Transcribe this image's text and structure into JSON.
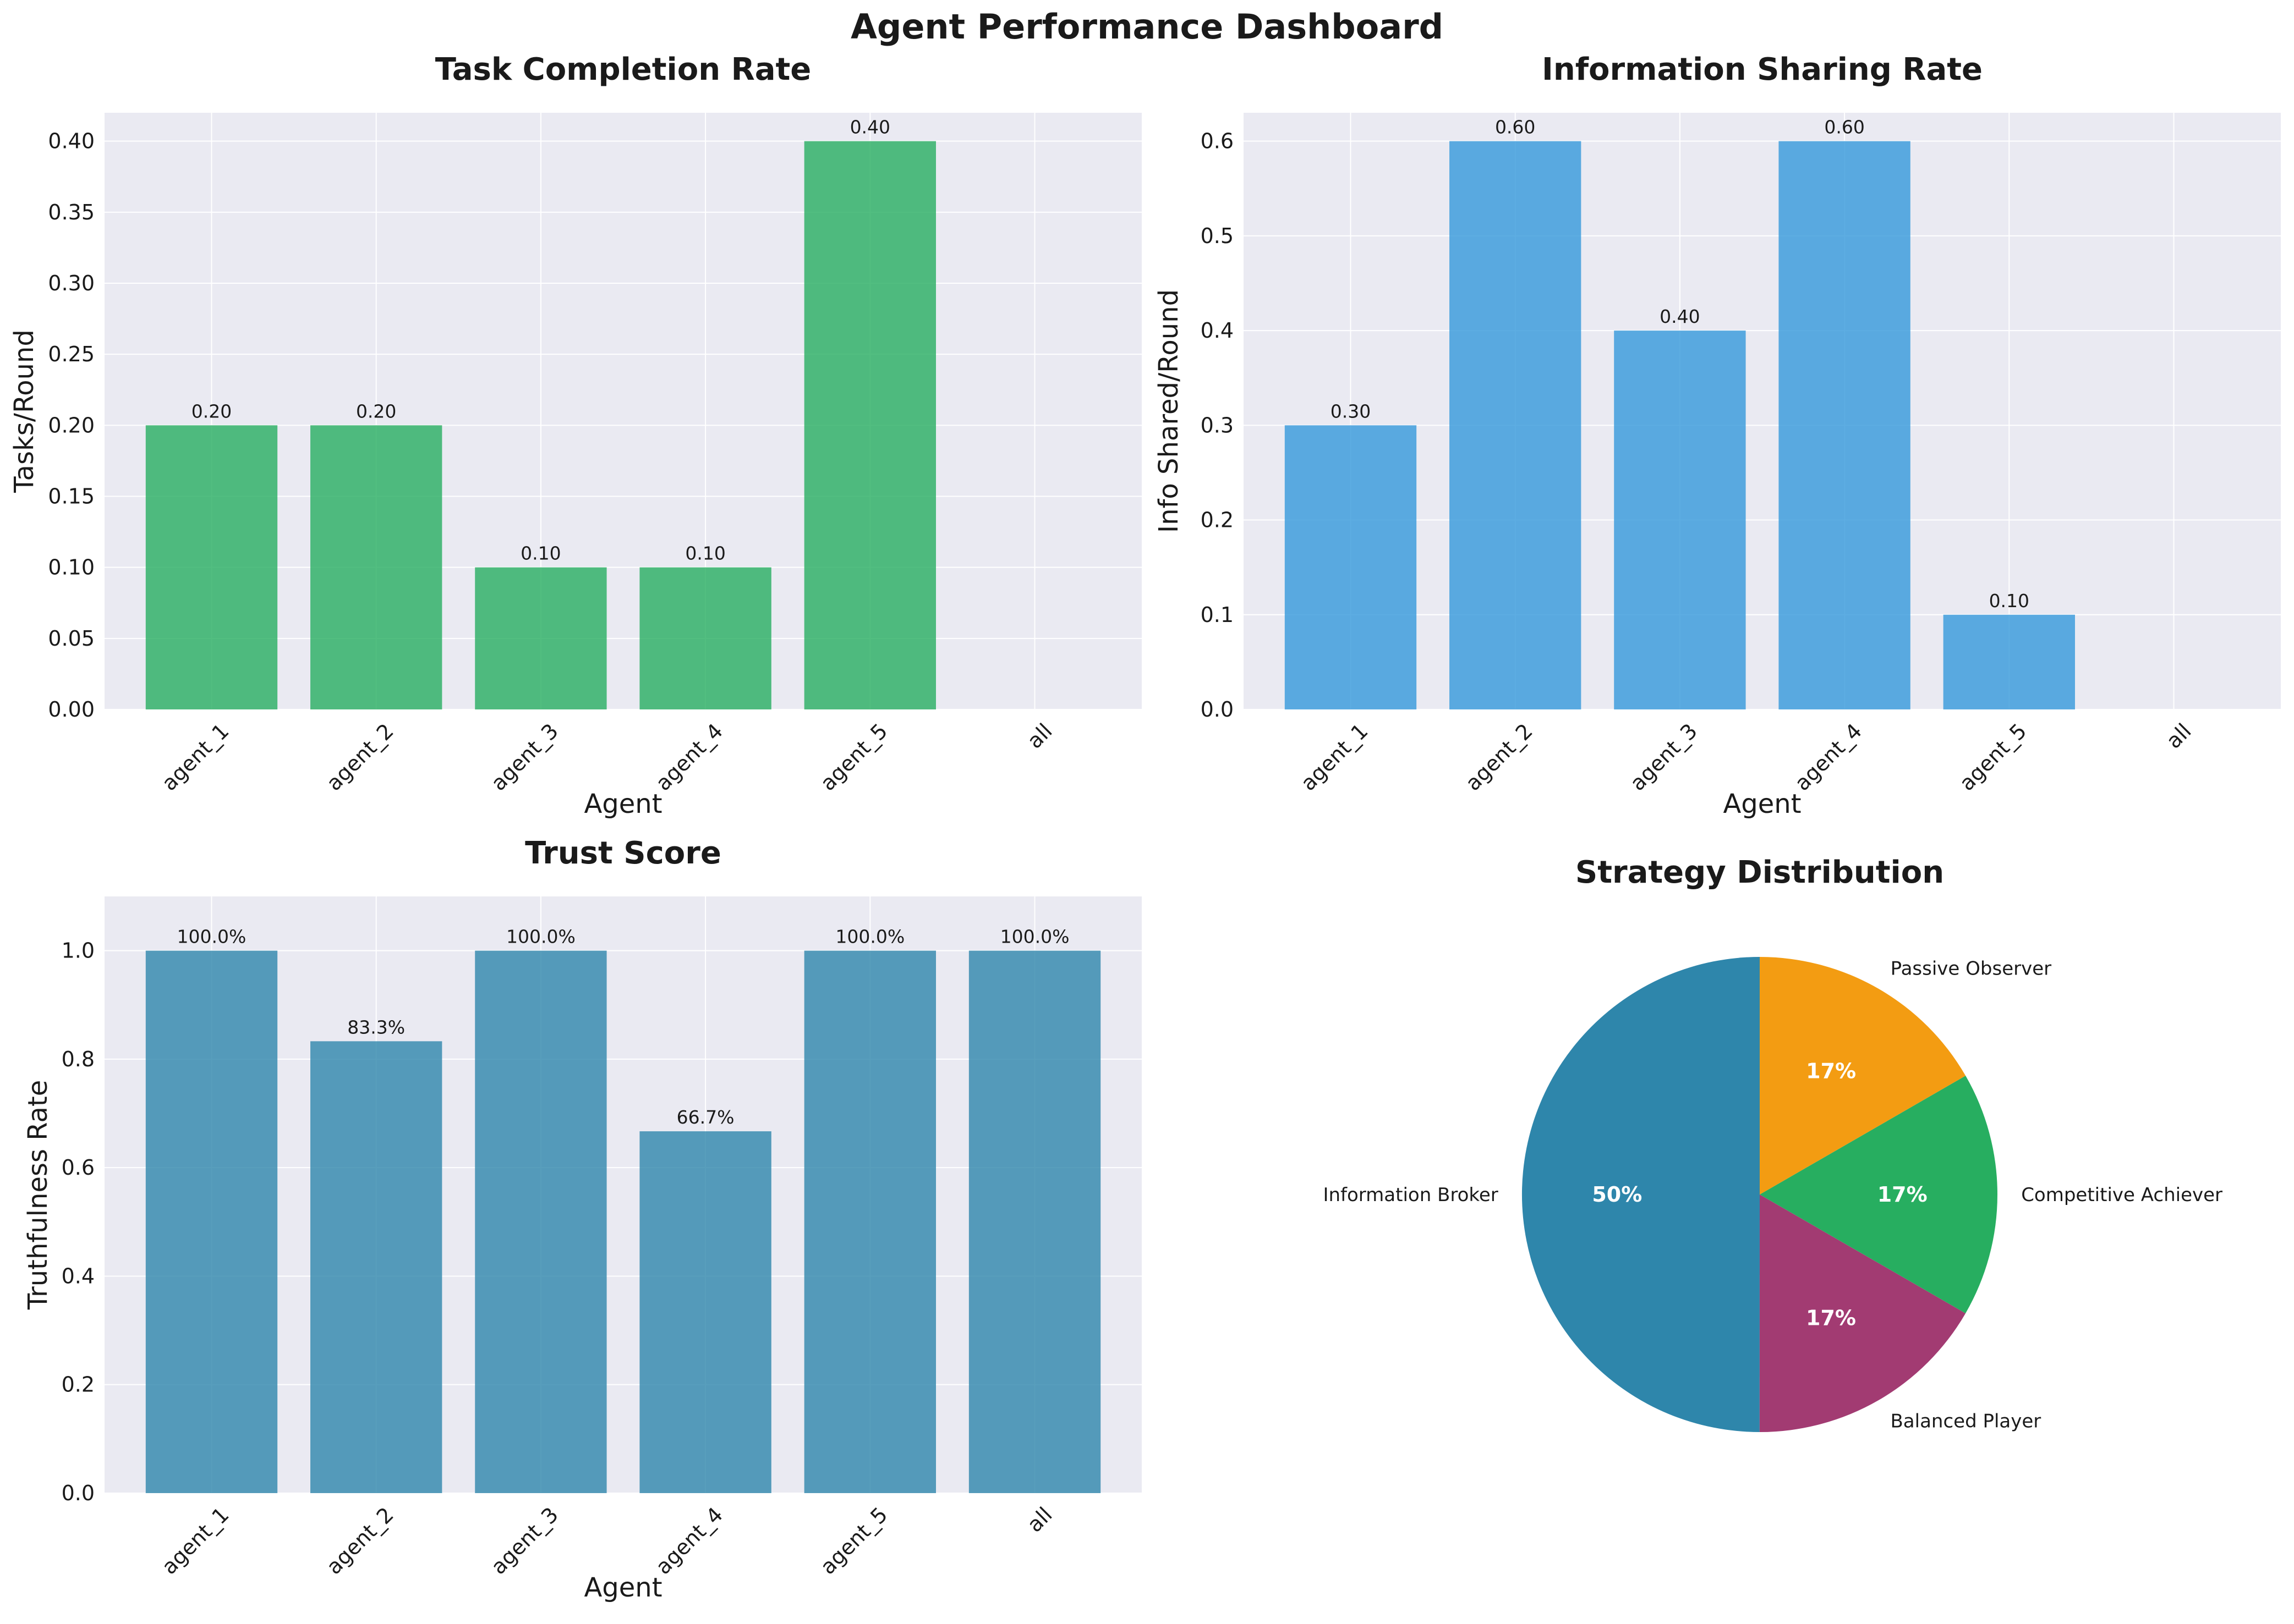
{
  "title": "Agent Performance Dashboard",
  "chart_data": [
    {
      "type": "bar",
      "title": "Task Completion Rate",
      "xlabel": "Agent",
      "ylabel": "Tasks/Round",
      "categories": [
        "agent_1",
        "agent_2",
        "agent_3",
        "agent_4",
        "agent_5",
        "all"
      ],
      "values": [
        0.2,
        0.2,
        0.1,
        0.1,
        0.4,
        null
      ],
      "data_labels": [
        "0.20",
        "0.20",
        "0.10",
        "0.10",
        "0.40",
        ""
      ],
      "ylim": [
        0,
        0.42
      ],
      "yticks": [
        0.0,
        0.05,
        0.1,
        0.15,
        0.2,
        0.25,
        0.3,
        0.35,
        0.4
      ],
      "ytick_labels": [
        "0.00",
        "0.05",
        "0.10",
        "0.15",
        "0.20",
        "0.25",
        "0.30",
        "0.35",
        "0.40"
      ],
      "color": "#27ae60",
      "grid": true
    },
    {
      "type": "bar",
      "title": "Information Sharing Rate",
      "xlabel": "Agent",
      "ylabel": "Info Shared/Round",
      "categories": [
        "agent_1",
        "agent_2",
        "agent_3",
        "agent_4",
        "agent_5",
        "all"
      ],
      "values": [
        0.3,
        0.6,
        0.4,
        0.6,
        0.1,
        null
      ],
      "data_labels": [
        "0.30",
        "0.60",
        "0.40",
        "0.60",
        "0.10",
        ""
      ],
      "ylim": [
        0,
        0.63
      ],
      "yticks": [
        0.0,
        0.1,
        0.2,
        0.3,
        0.4,
        0.5,
        0.6
      ],
      "ytick_labels": [
        "0.0",
        "0.1",
        "0.2",
        "0.3",
        "0.4",
        "0.5",
        "0.6"
      ],
      "color": "#3498db",
      "grid": true
    },
    {
      "type": "bar",
      "title": "Trust Score",
      "xlabel": "Agent",
      "ylabel": "Truthfulness Rate",
      "categories": [
        "agent_1",
        "agent_2",
        "agent_3",
        "agent_4",
        "agent_5",
        "all"
      ],
      "values": [
        1.0,
        0.833,
        1.0,
        0.667,
        1.0,
        1.0
      ],
      "data_labels": [
        "100.0%",
        "83.3%",
        "100.0%",
        "66.7%",
        "100.0%",
        "100.0%"
      ],
      "ylim": [
        0,
        1.1
      ],
      "yticks": [
        0.0,
        0.2,
        0.4,
        0.6,
        0.8,
        1.0
      ],
      "ytick_labels": [
        "0.0",
        "0.2",
        "0.4",
        "0.6",
        "0.8",
        "1.0"
      ],
      "color": "#2e86ab",
      "grid": true
    },
    {
      "type": "pie",
      "title": "Strategy Distribution",
      "labels": [
        "Information Broker",
        "Balanced Player",
        "Competitive Achiever",
        "Passive Observer"
      ],
      "values": [
        50,
        16.67,
        16.67,
        16.67
      ],
      "pct_labels": [
        "50%",
        "17%",
        "17%",
        "17%"
      ],
      "colors": [
        "#2e86ab",
        "#a23b72",
        "#27ae60",
        "#f39c12"
      ]
    }
  ]
}
